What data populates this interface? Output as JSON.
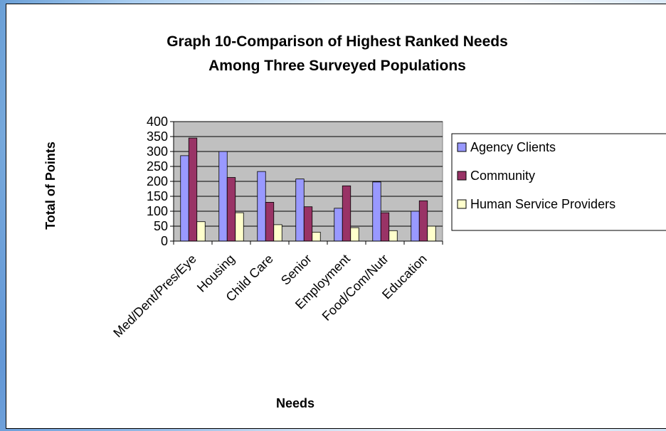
{
  "chart_data": {
    "type": "bar",
    "title_lines": [
      "Graph 10-Comparison of Highest Ranked Needs",
      "Among Three Surveyed Populations"
    ],
    "xlabel": "Needs",
    "ylabel": "Total of Points",
    "ylim": [
      0,
      400
    ],
    "yticks": [
      0,
      50,
      100,
      150,
      200,
      250,
      300,
      350,
      400
    ],
    "grid": true,
    "legend_position": "right",
    "categories": [
      "Med/Dent/Pres/Eye",
      "Housing",
      "Child Care",
      "Senior",
      "Employment",
      "Food/Com/Nutr",
      "Education"
    ],
    "series": [
      {
        "name": "Agency Clients",
        "color": "#9999ff",
        "values": [
          286,
          300,
          233,
          208,
          110,
          198,
          100
        ]
      },
      {
        "name": "Community",
        "color": "#993366",
        "values": [
          345,
          213,
          130,
          115,
          185,
          95,
          135
        ]
      },
      {
        "name": "Human Service Providers",
        "color": "#ffffcc",
        "values": [
          65,
          95,
          55,
          30,
          45,
          35,
          50
        ]
      }
    ],
    "plot_background": "#c0c0c0"
  }
}
